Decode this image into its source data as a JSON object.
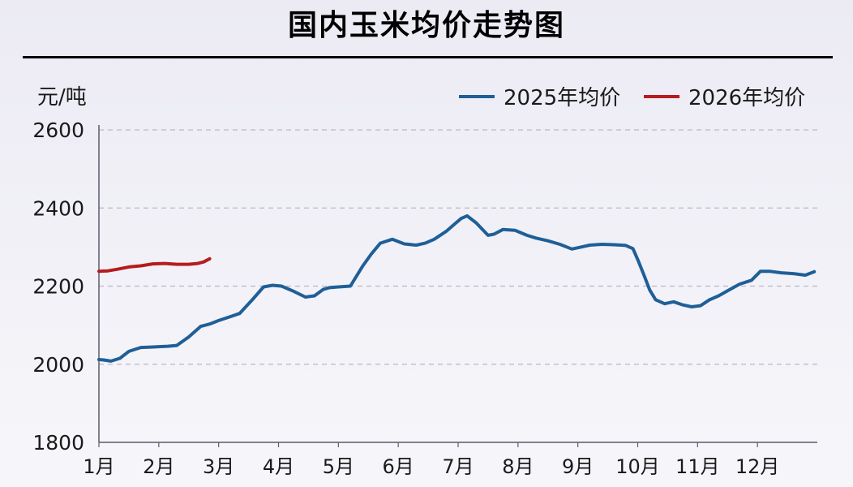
{
  "colors": {
    "series_2025": "#1f5f97",
    "series_2026": "#b51c1f",
    "grid": "#b9b9c5",
    "axis": "#5b5b6b",
    "text": "#1a1a1a"
  },
  "chart_data": {
    "type": "line",
    "title": "国内玉米均价走势图",
    "ylabel": "元/吨",
    "xlabel": "",
    "ylim": [
      1800,
      2600
    ],
    "yticks": [
      1800,
      2000,
      2200,
      2400,
      2600
    ],
    "ytick_labels": [
      "1800",
      "2000",
      "2200",
      "2400",
      "2600"
    ],
    "xlim": [
      1,
      13
    ],
    "xticks": [
      1,
      2,
      3,
      4,
      5,
      6,
      7,
      8,
      9,
      10,
      11,
      12
    ],
    "xtick_labels": [
      "1月",
      "2月",
      "3月",
      "4月",
      "5月",
      "6月",
      "7月",
      "8月",
      "9月",
      "10月",
      "11月",
      "12月"
    ],
    "grid": "horizontal dashed",
    "legend_position": "top-right",
    "series": [
      {
        "name": "2025年均价",
        "color_key": "series_2025",
        "x": [
          1.0,
          1.08,
          1.2,
          1.35,
          1.5,
          1.7,
          1.87,
          2.0,
          2.15,
          2.3,
          2.5,
          2.7,
          2.85,
          3.0,
          3.2,
          3.35,
          3.55,
          3.75,
          3.9,
          4.05,
          4.25,
          4.45,
          4.6,
          4.75,
          4.85,
          5.0,
          5.2,
          5.4,
          5.55,
          5.7,
          5.9,
          6.1,
          6.3,
          6.45,
          6.6,
          6.8,
          6.95,
          7.05,
          7.15,
          7.3,
          7.5,
          7.6,
          7.75,
          7.95,
          8.15,
          8.3,
          8.5,
          8.7,
          8.9,
          9.05,
          9.2,
          9.4,
          9.6,
          9.8,
          9.92,
          10.0,
          10.1,
          10.2,
          10.3,
          10.45,
          10.6,
          10.75,
          10.9,
          11.05,
          11.2,
          11.35,
          11.5,
          11.7,
          11.9,
          12.05,
          12.2,
          12.4,
          12.6,
          12.8,
          12.95
        ],
        "values": [
          2012,
          2011,
          2008,
          2015,
          2033,
          2043,
          2044,
          2045,
          2046,
          2048,
          2070,
          2097,
          2103,
          2112,
          2122,
          2130,
          2163,
          2198,
          2202,
          2200,
          2187,
          2172,
          2175,
          2192,
          2196,
          2198,
          2200,
          2250,
          2282,
          2310,
          2320,
          2308,
          2305,
          2310,
          2320,
          2340,
          2360,
          2373,
          2380,
          2362,
          2330,
          2333,
          2345,
          2343,
          2330,
          2323,
          2316,
          2307,
          2295,
          2300,
          2305,
          2307,
          2306,
          2304,
          2296,
          2268,
          2230,
          2190,
          2165,
          2155,
          2160,
          2152,
          2147,
          2150,
          2165,
          2175,
          2188,
          2205,
          2215,
          2238,
          2238,
          2234,
          2232,
          2228,
          2237
        ]
      },
      {
        "name": "2026年均价",
        "color_key": "series_2026",
        "x": [
          1.0,
          1.15,
          1.3,
          1.5,
          1.7,
          1.9,
          2.1,
          2.3,
          2.5,
          2.65,
          2.75,
          2.85
        ],
        "values": [
          2238,
          2239,
          2243,
          2249,
          2252,
          2257,
          2258,
          2256,
          2256,
          2258,
          2262,
          2270
        ]
      }
    ]
  }
}
